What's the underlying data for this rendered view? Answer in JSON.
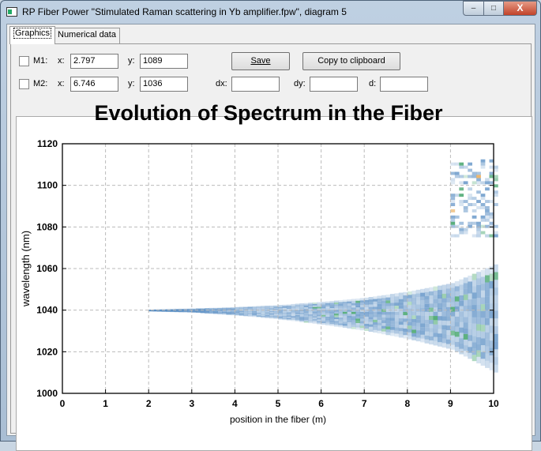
{
  "window": {
    "title": "RP Fiber Power \"Stimulated Raman scattering in Yb amplifier.fpw\", diagram 5",
    "minimize": "–",
    "maximize": "□",
    "close": "X"
  },
  "tabs": [
    {
      "label": "Graphics",
      "active": true
    },
    {
      "label": "Numerical data",
      "active": false
    }
  ],
  "markers": {
    "m1": {
      "label": "M1:",
      "x_label": "x:",
      "x": "2.797",
      "y_label": "y:",
      "y": "1089",
      "checked": false
    },
    "m2": {
      "label": "M2:",
      "x_label": "x:",
      "x": "6.746",
      "y_label": "y:",
      "y": "1036",
      "checked": false
    },
    "dx_label": "dx:",
    "dx": "",
    "dy_label": "dy:",
    "dy": "",
    "d_label": "d:",
    "d": ""
  },
  "buttons": {
    "save": "Save",
    "copy": "Copy to clipboard"
  },
  "chart_data": {
    "type": "heatmap",
    "title": "Evolution of Spectrum in the Fiber",
    "xlabel": "position in the fiber (m)",
    "ylabel": "wavelength (nm)",
    "xlim": [
      0,
      10
    ],
    "ylim": [
      1000,
      1120
    ],
    "xticks": [
      "0",
      "1",
      "2",
      "3",
      "4",
      "5",
      "6",
      "7",
      "8",
      "9",
      "10"
    ],
    "yticks": [
      "1000",
      "1020",
      "1040",
      "1060",
      "1080",
      "1100",
      "1120"
    ],
    "grid": true,
    "signal_center_nm": 1040,
    "envelope": {
      "x": [
        2,
        3,
        4,
        5,
        6,
        7,
        8,
        9,
        10
      ],
      "upper": [
        1040.3,
        1040.8,
        1041.5,
        1042.5,
        1044,
        1046,
        1049,
        1053,
        1062
      ],
      "lower": [
        1039.7,
        1039,
        1037.5,
        1035.5,
        1033,
        1030,
        1026,
        1021,
        1010
      ]
    },
    "raman_band": {
      "x_start": 9,
      "x_end": 10,
      "wavelength_range": [
        1075,
        1112
      ]
    },
    "colors": {
      "low": "#dbe7f3",
      "mid": "#5b8fc4",
      "high": "#2e9a5a",
      "peak": "#e8a040"
    }
  }
}
